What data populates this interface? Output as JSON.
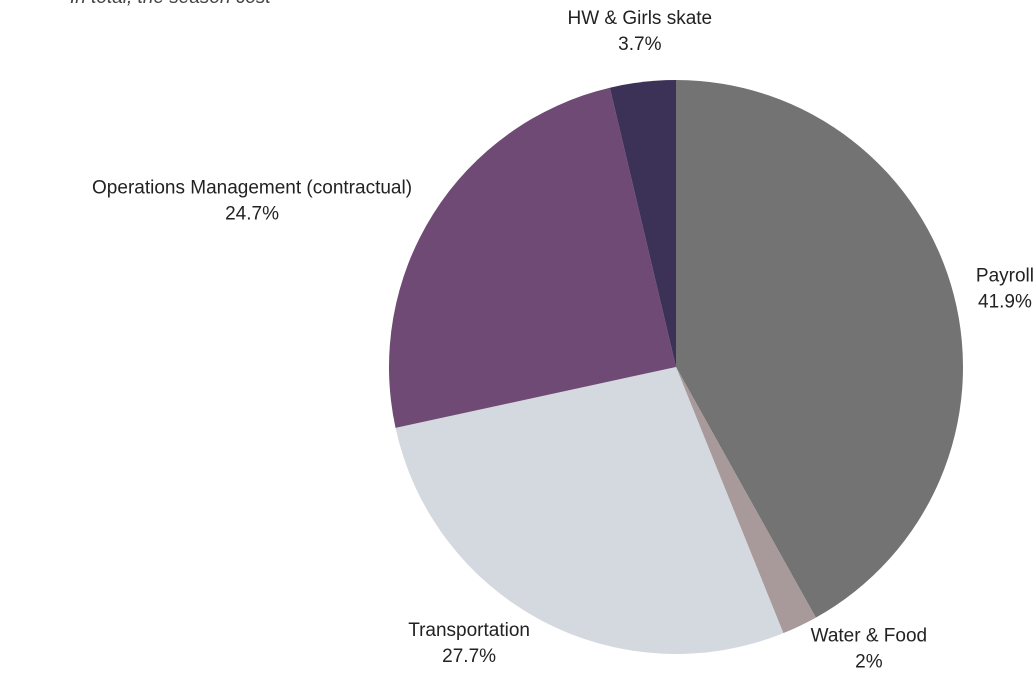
{
  "chart_data": {
    "type": "pie",
    "note": "In total, the season cost",
    "categories": [
      "Payroll",
      "Water & Food",
      "Transportation",
      "Operations Management (contractual)",
      "HW & Girls skate"
    ],
    "values": [
      41.9,
      2,
      27.7,
      24.7,
      3.7
    ],
    "value_labels": [
      "41.9%",
      "2%",
      "27.7%",
      "24.7%",
      "3.7%"
    ],
    "colors": [
      "#737373",
      "#a89a9a",
      "#d4d9df",
      "#6e4a74",
      "#3c3157"
    ]
  }
}
